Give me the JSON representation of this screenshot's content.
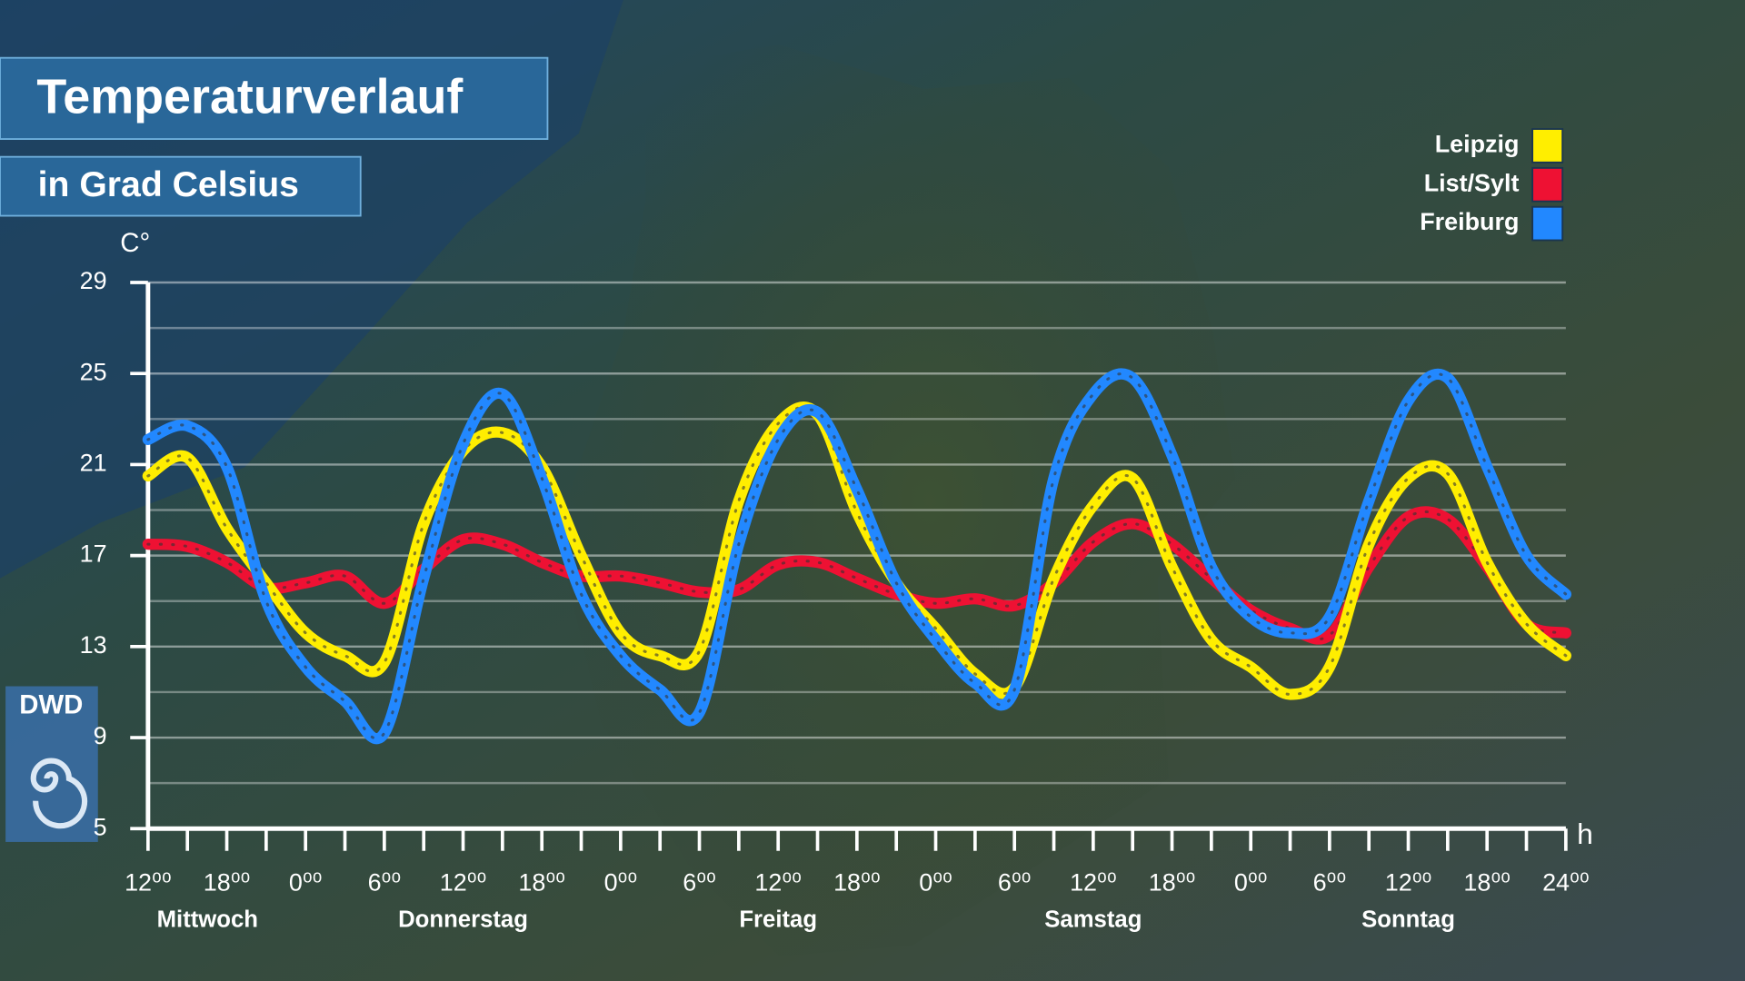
{
  "chart_data": {
    "type": "line",
    "title": "Temperaturverlauf",
    "subtitle": "in Grad Celsius",
    "y_label": "C°",
    "x_label": "h",
    "logo": "DWD",
    "days": [
      "Mittwoch",
      "Donnerstag",
      "Freitag",
      "Samstag",
      "Sonntag"
    ],
    "x": [
      0,
      3,
      6,
      9,
      12,
      15,
      18,
      21,
      24,
      27,
      30,
      33,
      36,
      39,
      42,
      45,
      48,
      51,
      54,
      57,
      60,
      63,
      66,
      69,
      72,
      75,
      78,
      81,
      84,
      87,
      90,
      93,
      96,
      99,
      102,
      105,
      108
    ],
    "xlim": [
      0,
      108
    ],
    "xticks": [
      {
        "value": 0,
        "label": "12⁰⁰"
      },
      {
        "value": 6,
        "label": "18⁰⁰"
      },
      {
        "value": 12,
        "label": "0⁰⁰"
      },
      {
        "value": 18,
        "label": "6⁰⁰"
      },
      {
        "value": 24,
        "label": "12⁰⁰"
      },
      {
        "value": 30,
        "label": "18⁰⁰"
      },
      {
        "value": 36,
        "label": "0⁰⁰"
      },
      {
        "value": 42,
        "label": "6⁰⁰"
      },
      {
        "value": 48,
        "label": "12⁰⁰"
      },
      {
        "value": 54,
        "label": "18⁰⁰"
      },
      {
        "value": 60,
        "label": "0⁰⁰"
      },
      {
        "value": 66,
        "label": "6⁰⁰"
      },
      {
        "value": 72,
        "label": "12⁰⁰"
      },
      {
        "value": 78,
        "label": "18⁰⁰"
      },
      {
        "value": 84,
        "label": "0⁰⁰"
      },
      {
        "value": 90,
        "label": "6⁰⁰"
      },
      {
        "value": 96,
        "label": "12⁰⁰"
      },
      {
        "value": 102,
        "label": "18⁰⁰"
      },
      {
        "value": 108,
        "label": "24⁰⁰"
      }
    ],
    "minor_xticks": [
      3,
      9,
      15,
      21,
      27,
      33,
      39,
      45,
      51,
      57,
      63,
      69,
      75,
      81,
      87,
      93,
      99,
      105
    ],
    "ylim": [
      5,
      29
    ],
    "yticks": [
      5,
      9,
      13,
      17,
      21,
      25,
      29
    ],
    "minor_yticks": [
      7,
      11,
      15,
      19,
      23,
      27
    ],
    "grid": true,
    "legend_position": "upper right",
    "series": [
      {
        "name": "Leipzig",
        "color": "#ffee00",
        "values": [
          20.5,
          21.3,
          18.2,
          15.8,
          13.6,
          12.6,
          12.3,
          18.4,
          21.6,
          22.4,
          20.9,
          17.0,
          13.6,
          12.6,
          12.8,
          19.4,
          22.8,
          23.2,
          18.9,
          15.8,
          13.8,
          11.8,
          11.2,
          16.0,
          19.2,
          20.4,
          16.5,
          13.3,
          12.1,
          10.9,
          12.1,
          17.5,
          20.4,
          20.6,
          16.7,
          14.0,
          12.6
        ]
      },
      {
        "name": "List/Sylt",
        "color": "#ee1133",
        "values": [
          17.5,
          17.4,
          16.7,
          15.6,
          15.8,
          16.1,
          14.9,
          16.4,
          17.7,
          17.5,
          16.7,
          16.1,
          16.1,
          15.8,
          15.4,
          15.5,
          16.6,
          16.7,
          16.0,
          15.3,
          14.9,
          15.1,
          14.8,
          15.8,
          17.6,
          18.4,
          17.5,
          16.0,
          14.6,
          13.8,
          13.5,
          16.5,
          18.7,
          18.6,
          16.5,
          14.0,
          13.6
        ]
      },
      {
        "name": "Freiburg",
        "color": "#2288ff",
        "values": [
          22.1,
          22.7,
          20.9,
          15.0,
          12.1,
          10.6,
          9.2,
          16.0,
          21.9,
          24.1,
          20.4,
          15.3,
          12.6,
          11.1,
          10.1,
          17.5,
          22.1,
          23.3,
          19.9,
          15.8,
          13.3,
          11.4,
          11.1,
          20.4,
          24.1,
          24.8,
          21.4,
          16.5,
          14.3,
          13.6,
          14.3,
          19.4,
          23.8,
          24.8,
          20.9,
          17.0,
          15.3
        ]
      }
    ]
  }
}
